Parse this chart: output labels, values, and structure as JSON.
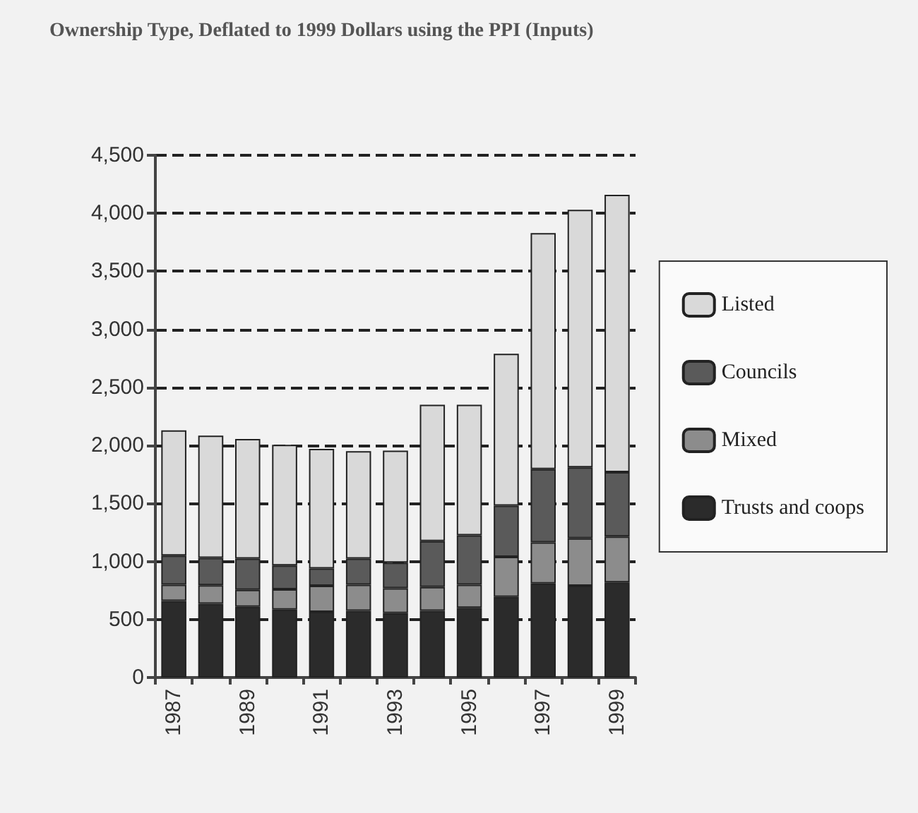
{
  "chart_data": {
    "type": "bar",
    "title": "Ownership Type, Deflated to 1999 Dollars using the PPI (Inputs)",
    "categories": [
      "1987",
      null,
      "1989",
      null,
      "1991",
      null,
      "1993",
      null,
      "1995",
      null,
      "1997",
      null,
      "1999"
    ],
    "stacked": true,
    "series": [
      {
        "name": "Trusts and coops",
        "color": "#2b2b2b",
        "values": [
          660,
          635,
          610,
          585,
          565,
          575,
          555,
          575,
          600,
          695,
          810,
          790,
          820
        ]
      },
      {
        "name": "Mixed",
        "color": "#8c8c8c",
        "values": [
          140,
          160,
          145,
          175,
          225,
          225,
          215,
          205,
          200,
          345,
          355,
          410,
          395
        ]
      },
      {
        "name": "Councils",
        "color": "#5a5a5a",
        "values": [
          250,
          235,
          270,
          205,
          150,
          225,
          220,
          395,
          425,
          440,
          630,
          610,
          555
        ]
      },
      {
        "name": "Listed",
        "color": "#d9d9d9",
        "values": [
          1080,
          1055,
          1030,
          1040,
          1030,
          925,
          965,
          1175,
          1125,
          1310,
          2035,
          2220,
          2390
        ]
      }
    ],
    "ylim": [
      0,
      4500
    ],
    "yticks": [
      0,
      500,
      {
        "value": 1000,
        "label": "1,000"
      },
      {
        "value": 1500,
        "label": "1,500"
      },
      {
        "value": 2000,
        "label": "2,000"
      },
      {
        "value": 2500,
        "label": "2,500"
      },
      {
        "value": 3000,
        "label": "3,000"
      },
      {
        "value": 3500,
        "label": "3,500"
      },
      {
        "value": 4000,
        "label": "4,000"
      },
      {
        "value": 4500,
        "label": "4,500"
      }
    ],
    "grid": "y",
    "legend": "right"
  }
}
